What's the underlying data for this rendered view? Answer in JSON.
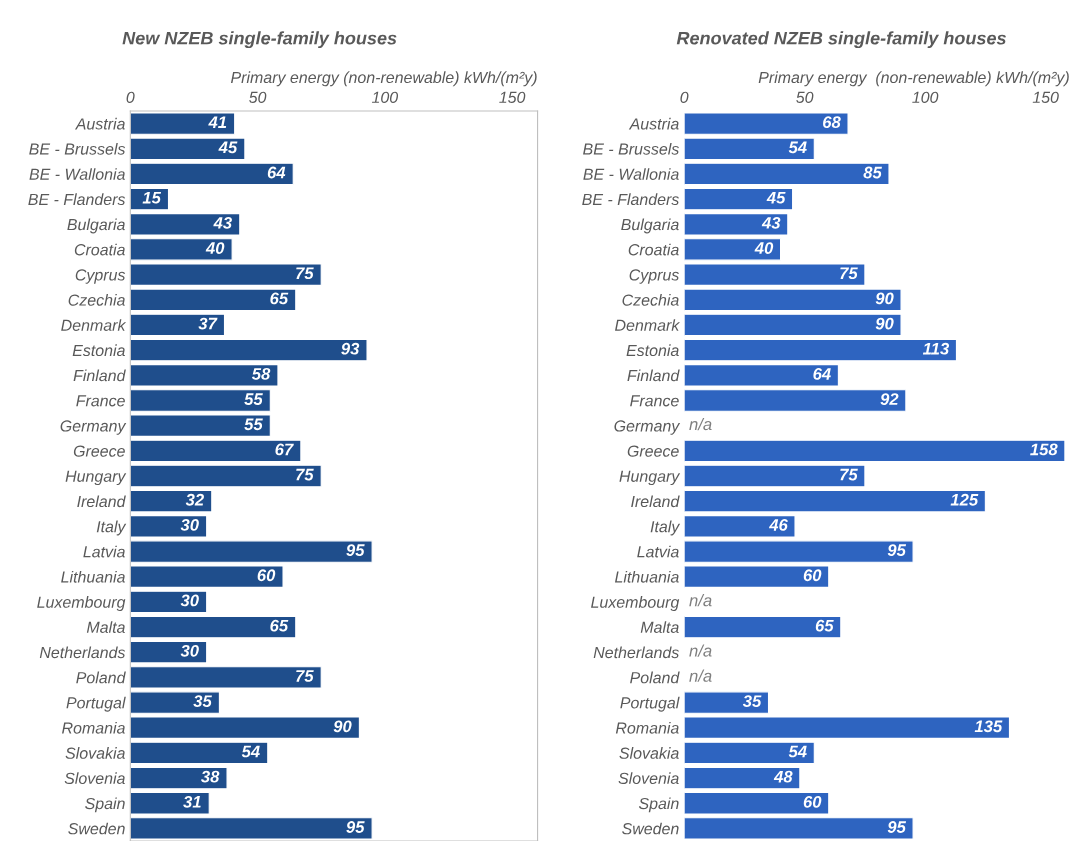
{
  "chart_data": [
    {
      "type": "bar",
      "orientation": "horizontal",
      "title": "New NZEB single-family houses",
      "xlabel": "Primary energy (non-renewable) kWh/(m²y)",
      "categories": [
        "Austria",
        "BE - Brussels",
        "BE - Wallonia",
        "BE - Flanders",
        "Bulgaria",
        "Croatia",
        "Cyprus",
        "Czechia",
        "Denmark",
        "Estonia",
        "Finland",
        "France",
        "Germany",
        "Greece",
        "Hungary",
        "Ireland",
        "Italy",
        "Latvia",
        "Lithuania",
        "Luxembourg",
        "Malta",
        "Netherlands",
        "Poland",
        "Portugal",
        "Romania",
        "Slovakia",
        "Slovenia",
        "Spain",
        "Sweden"
      ],
      "values": [
        41,
        45,
        64,
        15,
        43,
        40,
        75,
        65,
        37,
        93,
        58,
        55,
        55,
        67,
        75,
        32,
        30,
        95,
        60,
        30,
        65,
        30,
        75,
        35,
        90,
        54,
        38,
        31,
        95
      ],
      "color": "#1f4e8c",
      "xlim": [
        0,
        160
      ],
      "xticks": [
        0,
        50,
        100,
        150
      ],
      "data_labels": true,
      "grid": false
    },
    {
      "type": "bar",
      "orientation": "horizontal",
      "title": "Renovated NZEB single-family houses",
      "xlabel": "Primary energy  (non-renewable) kWh/(m²y)",
      "categories": [
        "Austria",
        "BE - Brussels",
        "BE - Wallonia",
        "BE - Flanders",
        "Bulgaria",
        "Croatia",
        "Cyprus",
        "Czechia",
        "Denmark",
        "Estonia",
        "Finland",
        "France",
        "Germany",
        "Greece",
        "Hungary",
        "Ireland",
        "Italy",
        "Latvia",
        "Lithuania",
        "Luxembourg",
        "Malta",
        "Netherlands",
        "Poland",
        "Portugal",
        "Romania",
        "Slovakia",
        "Slovenia",
        "Spain",
        "Sweden"
      ],
      "values": [
        68,
        54,
        85,
        45,
        43,
        40,
        75,
        90,
        90,
        113,
        64,
        92,
        null,
        158,
        75,
        125,
        46,
        95,
        60,
        null,
        65,
        null,
        null,
        35,
        135,
        54,
        48,
        60,
        95
      ],
      "value_labels": [
        "68",
        "54",
        "85",
        "45",
        "43",
        "40",
        "75",
        "90",
        "90",
        "113",
        "64",
        "92",
        "n/a",
        "158",
        "75",
        "125",
        "46",
        "95",
        "60",
        "n/a",
        "65",
        "n/a",
        "n/a",
        "35",
        "135",
        "54",
        "48",
        "60",
        "95"
      ],
      "color": "#2e64c0",
      "xlim": [
        0,
        160
      ],
      "xticks": [
        0,
        50,
        100,
        150
      ],
      "grid": false
    }
  ]
}
